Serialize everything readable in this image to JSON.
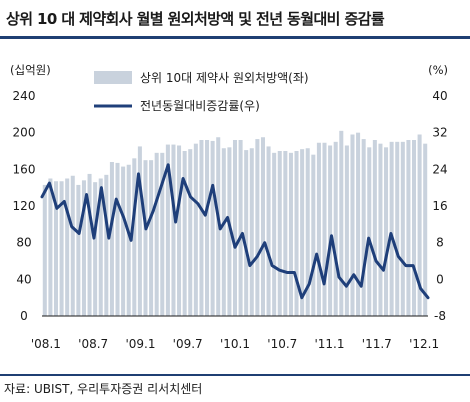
{
  "title": "상위 10 대 제약회사 월별 원외처방액 및 전년 동월대비 증감률",
  "source": "자료: UBIST, 우리투자증권 리서치센터",
  "chart_data": {
    "type": "bar+line",
    "left_axis": {
      "unit": "(십억원)",
      "ticks": [
        "240",
        "200",
        "160",
        "120",
        "80",
        "40",
        "0"
      ],
      "range": [
        0,
        240
      ]
    },
    "right_axis": {
      "unit": "(%)",
      "ticks": [
        "40",
        "32",
        "24",
        "16",
        "8",
        "0",
        "-8"
      ],
      "range": [
        -8,
        40
      ]
    },
    "x_tick_labels": [
      "'08.1",
      "'08.7",
      "'09.1",
      "'09.7",
      "'10.1",
      "'10.7",
      "'11.1",
      "'11.7",
      "'12.1"
    ],
    "grid": false,
    "legend_position": "top",
    "series": [
      {
        "name": "상위 10대 제약사 원외처방액(좌)",
        "type": "bar",
        "axis": "left",
        "color": "#c9d2dd",
        "values": [
          143,
          150,
          147,
          147,
          150,
          153,
          143,
          148,
          155,
          146,
          150,
          154,
          168,
          167,
          163,
          165,
          172,
          185,
          170,
          170,
          178,
          178,
          187,
          187,
          186,
          180,
          182,
          188,
          192,
          192,
          191,
          195,
          183,
          184,
          192,
          192,
          181,
          183,
          193,
          195,
          185,
          178,
          180,
          180,
          178,
          180,
          182,
          183,
          176,
          189,
          189,
          186,
          190,
          202,
          186,
          198,
          200,
          193,
          184,
          192,
          188,
          184,
          190,
          190,
          190,
          192,
          192,
          198,
          188
        ]
      },
      {
        "name": "전년동월대비증감률(우)",
        "type": "line",
        "axis": "right",
        "color": "#1f3f7a",
        "values": [
          18,
          21,
          15.5,
          17,
          11.5,
          10,
          18.5,
          9,
          20,
          9,
          17.5,
          13.5,
          8.5,
          23,
          11,
          15,
          20,
          25,
          12.5,
          22,
          18,
          16.5,
          14,
          20.5,
          11,
          13.5,
          7,
          10,
          3,
          5,
          8,
          3,
          2,
          1.5,
          1.5,
          -4,
          -1,
          5.5,
          -1,
          9.5,
          0.5,
          -1.5,
          1,
          -1.5,
          9,
          4,
          2,
          10,
          5,
          3,
          3,
          -2,
          -4
        ]
      }
    ]
  }
}
